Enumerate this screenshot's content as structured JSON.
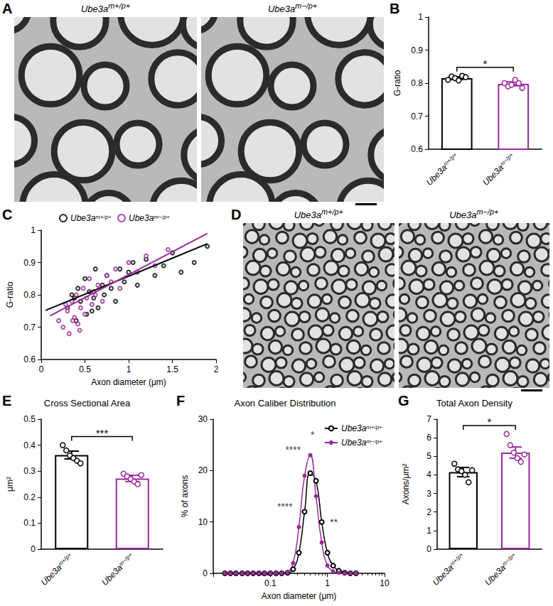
{
  "images": [
    {
      "panel_label": "A",
      "labels": [
        "Ube3am+/p+",
        "Ube3am−/p+"
      ]
    },
    {
      "panel_label": "D",
      "labels": [
        "Ube3am+/p+",
        "Ube3am−/p+"
      ]
    }
  ],
  "chart_data": [
    {
      "panel_label": "B",
      "type": "bar",
      "categories": [
        "Ube3am+/p+",
        "Ube3am−/p+"
      ],
      "values": [
        0.815,
        0.798
      ],
      "errors": [
        0.004,
        0.006
      ],
      "points": [
        [
          0.81,
          0.82,
          0.815,
          0.808,
          0.822,
          0.818
        ],
        [
          0.8,
          0.79,
          0.795,
          0.81,
          0.8,
          0.785
        ]
      ],
      "colors": [
        "#000000",
        "#9c2a9c"
      ],
      "ylabel": "G-ratio",
      "ylim": [
        0.6,
        1
      ],
      "yticks": [
        0.6,
        0.7,
        0.8,
        0.9,
        1
      ],
      "significance": "*"
    },
    {
      "panel_label": "C",
      "type": "scatter",
      "xlabel": "Axon diameter (μm)",
      "ylabel": "G-ratio",
      "xlim": [
        0,
        2
      ],
      "xticks": [
        0,
        0.5,
        1,
        1.5,
        2
      ],
      "ylim": [
        0.6,
        1
      ],
      "yticks": [
        0.6,
        0.7,
        0.8,
        0.9,
        1
      ],
      "legend": "top",
      "series": [
        {
          "name": "Ube3am+/p+",
          "color": "#000000",
          "marker": "open_circle",
          "x": [
            0.3,
            0.35,
            0.4,
            0.42,
            0.45,
            0.5,
            0.52,
            0.55,
            0.6,
            0.62,
            0.65,
            0.7,
            0.72,
            0.75,
            0.8,
            0.85,
            0.9,
            0.95,
            1.0,
            1.05,
            1.1,
            1.2,
            1.3,
            1.4,
            1.5,
            1.6,
            1.75,
            1.9,
            0.38,
            0.58
          ],
          "y": [
            0.76,
            0.8,
            0.72,
            0.82,
            0.78,
            0.85,
            0.74,
            0.81,
            0.79,
            0.88,
            0.76,
            0.83,
            0.8,
            0.86,
            0.82,
            0.78,
            0.88,
            0.84,
            0.87,
            0.9,
            0.83,
            0.91,
            0.86,
            0.89,
            0.93,
            0.87,
            0.9,
            0.95,
            0.79,
            0.75
          ],
          "fit": {
            "x": [
              0.05,
              1.9
            ],
            "y": [
              0.752,
              0.958
            ]
          }
        },
        {
          "name": "Ube3am−/p+",
          "color": "#9c2a9c",
          "marker": "open_circle",
          "x": [
            0.2,
            0.25,
            0.3,
            0.32,
            0.35,
            0.38,
            0.4,
            0.42,
            0.45,
            0.48,
            0.5,
            0.52,
            0.55,
            0.58,
            0.6,
            0.65,
            0.7,
            0.75,
            0.8,
            0.85,
            0.9,
            1.0,
            1.1,
            1.2,
            1.3,
            1.45,
            0.28,
            0.44,
            0.36,
            0.62
          ],
          "y": [
            0.72,
            0.7,
            0.75,
            0.68,
            0.78,
            0.73,
            0.8,
            0.71,
            0.76,
            0.82,
            0.74,
            0.79,
            0.85,
            0.77,
            0.81,
            0.83,
            0.78,
            0.86,
            0.84,
            0.88,
            0.82,
            0.9,
            0.87,
            0.92,
            0.89,
            0.94,
            0.77,
            0.69,
            0.72,
            0.8
          ],
          "fit": {
            "x": [
              0.1,
              1.9
            ],
            "y": [
              0.735,
              0.99
            ]
          }
        }
      ]
    },
    {
      "panel_label": "E",
      "type": "bar",
      "title": "Cross Sectional Area",
      "categories": [
        "Ube3am+/p+",
        "Ube3am−/p+"
      ],
      "values": [
        0.362,
        0.272
      ],
      "errors": [
        0.015,
        0.012
      ],
      "points": [
        [
          0.4,
          0.38,
          0.36,
          0.35,
          0.34,
          0.33
        ],
        [
          0.29,
          0.28,
          0.27,
          0.26,
          0.25,
          0.285
        ]
      ],
      "colors": [
        "#000000",
        "#9c2a9c"
      ],
      "ylabel": "μm²",
      "ylim": [
        0,
        0.5
      ],
      "yticks": [
        0,
        0.1,
        0.2,
        0.3,
        0.4,
        0.5
      ],
      "significance": "***"
    },
    {
      "panel_label": "F",
      "type": "line",
      "title": "Axon Caliber Distribution",
      "log": "x",
      "xlabel": "Axon diameter (μm)",
      "ylabel": "% of axons",
      "xlim": [
        0.01,
        10
      ],
      "xticks": [
        0.1,
        1,
        10
      ],
      "ylim": [
        0,
        30
      ],
      "yticks": [
        0,
        10,
        20,
        30
      ],
      "legend": "top-right",
      "x": [
        0.016,
        0.02,
        0.025,
        0.032,
        0.04,
        0.05,
        0.063,
        0.079,
        0.1,
        0.126,
        0.158,
        0.2,
        0.251,
        0.316,
        0.398,
        0.501,
        0.631,
        0.794,
        1.0,
        1.259,
        1.585,
        2.0,
        2.512,
        3.162
      ],
      "series": [
        {
          "name": "Ube3am+/p+",
          "color": "#000000",
          "marker": "open_circle",
          "values": [
            0,
            0,
            0,
            0,
            0,
            0,
            0,
            0,
            0,
            0,
            0,
            0.1,
            0.8,
            4,
            12,
            19.5,
            18,
            10,
            4,
            1.5,
            0.5,
            0.1,
            0,
            0
          ]
        },
        {
          "name": "Ube3am−/p+",
          "color": "#9c2a9c",
          "marker": "circle",
          "values": [
            0,
            0,
            0,
            0,
            0,
            0,
            0,
            0,
            0,
            0,
            0,
            0.3,
            2,
            9,
            19,
            23,
            15,
            6,
            1.5,
            0.4,
            0.1,
            0,
            0,
            0
          ]
        }
      ],
      "annotations": [
        {
          "text": "****",
          "x": 0.25,
          "y": 24
        },
        {
          "text": "*",
          "x": 0.55,
          "y": 27
        },
        {
          "text": "****",
          "x": 0.18,
          "y": 13
        },
        {
          "text": "**",
          "x": 1.3,
          "y": 10
        }
      ]
    },
    {
      "panel_label": "G",
      "type": "bar",
      "title": "Total Axon Density",
      "categories": [
        "Ube3am+/p+",
        "Ube3am−/p+"
      ],
      "values": [
        4.15,
        5.2
      ],
      "errors": [
        0.25,
        0.3
      ],
      "points": [
        [
          4.6,
          4.3,
          4.2,
          4.0,
          3.6,
          4.25
        ],
        [
          6.2,
          5.6,
          5.2,
          4.9,
          4.7,
          5.1
        ]
      ],
      "colors": [
        "#000000",
        "#9c2a9c"
      ],
      "ylabel": "Axons/μm²",
      "ylim": [
        0,
        7
      ],
      "yticks": [
        0,
        1,
        2,
        3,
        4,
        5,
        6,
        7
      ],
      "significance": "*"
    }
  ]
}
